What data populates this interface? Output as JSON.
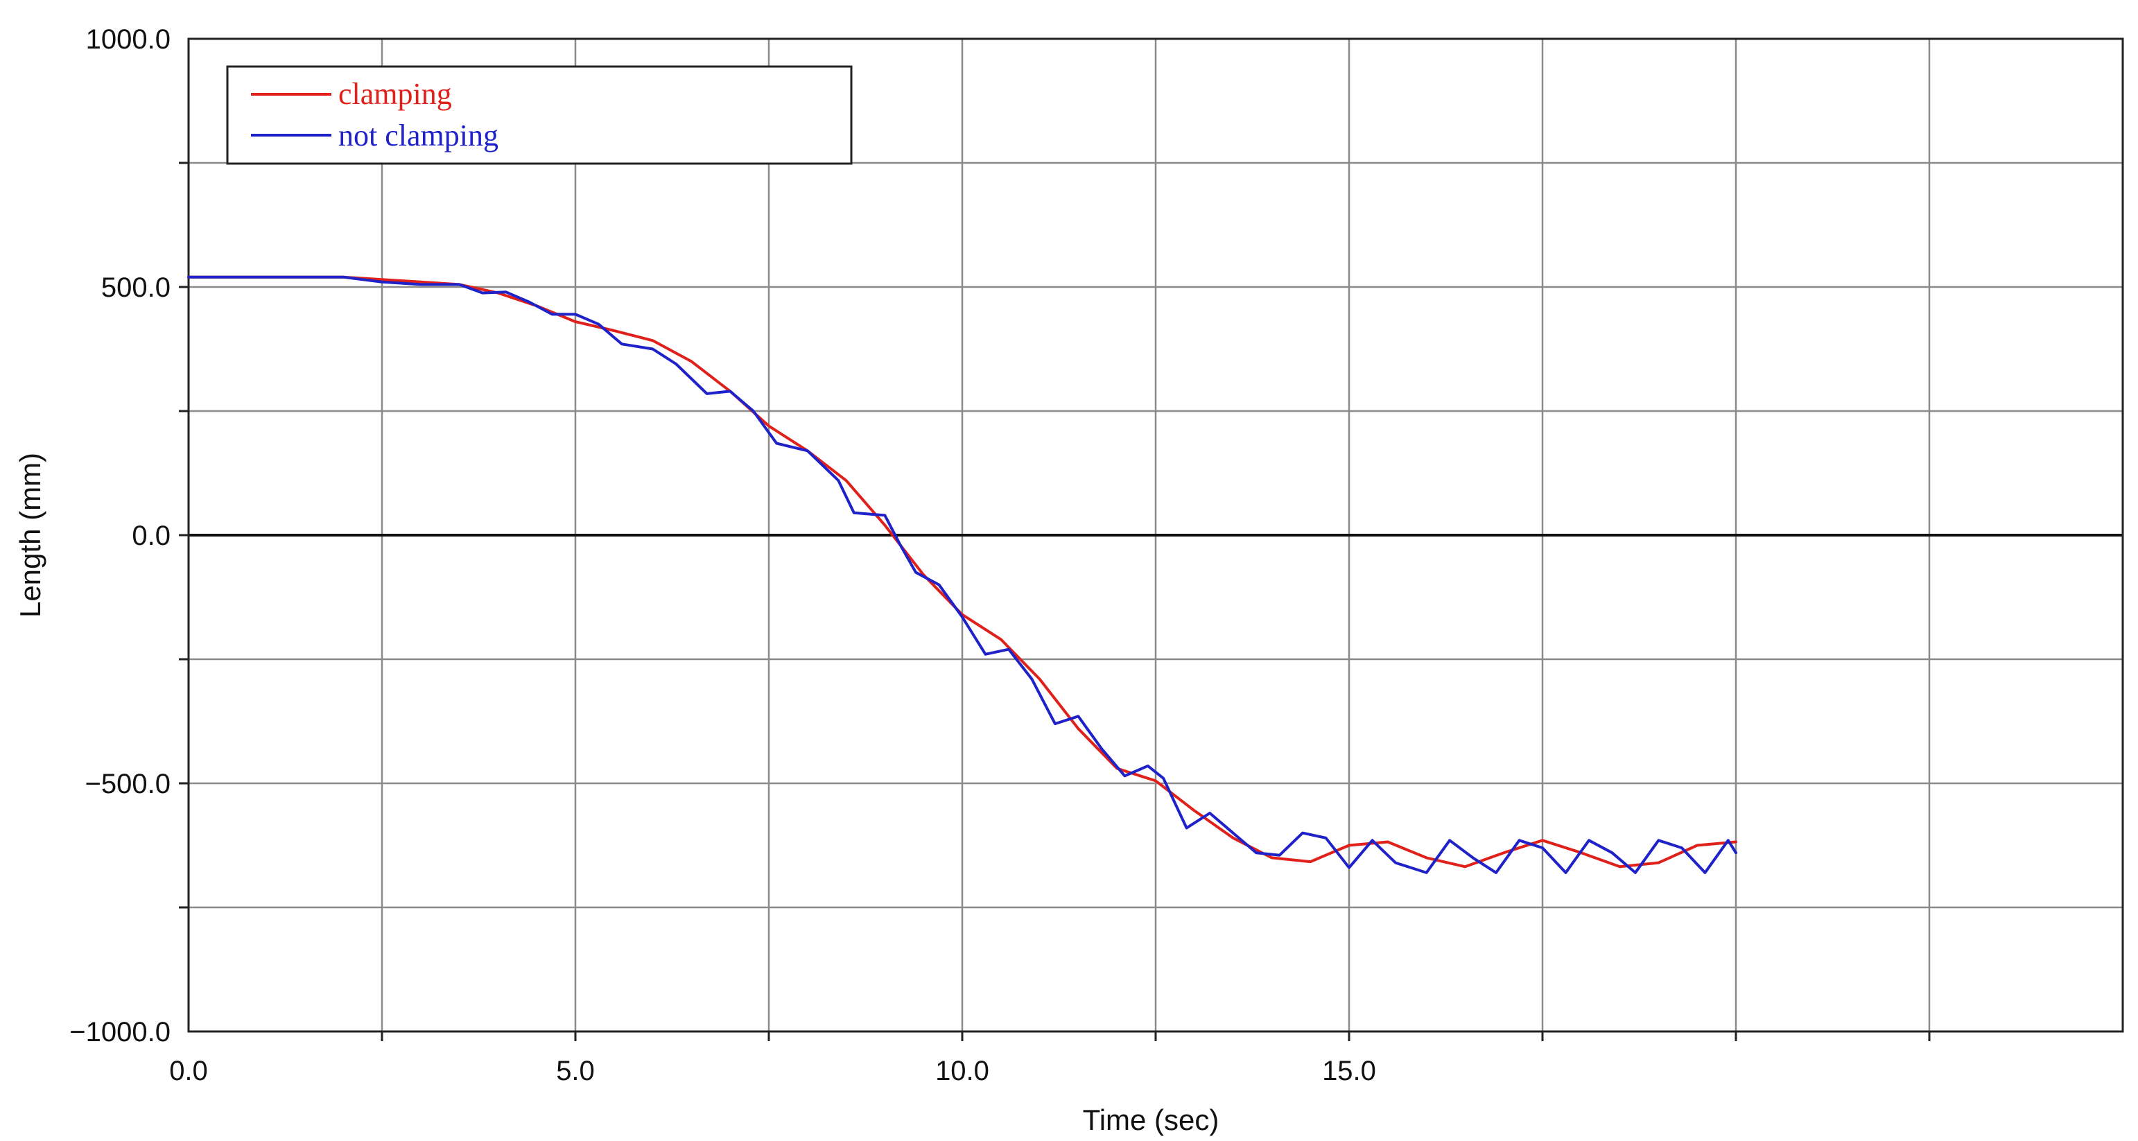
{
  "chart_data": {
    "type": "line",
    "title": "",
    "xlabel": "Time (sec)",
    "ylabel": "Length (mm)",
    "xlim": [
      0,
      25
    ],
    "ylim": [
      -1000,
      1000
    ],
    "x_ticks": [
      0,
      5,
      10,
      15
    ],
    "x_tick_labels": [
      "0.0",
      "5.0",
      "10.0",
      "15.0"
    ],
    "y_ticks": [
      1000,
      500,
      0,
      -500,
      -1000
    ],
    "y_tick_labels": [
      "1000.0",
      "500.0",
      "0.0",
      "−500.0",
      "−1000.0"
    ],
    "grid": true,
    "x_grid_step": 2.5,
    "y_grid_step": 250,
    "legend_position": "top-left",
    "series": [
      {
        "name": "clamping",
        "color": "#e0201b",
        "points": [
          [
            0,
            520
          ],
          [
            2.0,
            520
          ],
          [
            2.5,
            515
          ],
          [
            3.0,
            510
          ],
          [
            3.5,
            505
          ],
          [
            4.0,
            488
          ],
          [
            4.5,
            462
          ],
          [
            5.0,
            430
          ],
          [
            5.5,
            412
          ],
          [
            6.0,
            392
          ],
          [
            6.5,
            350
          ],
          [
            7.0,
            290
          ],
          [
            7.5,
            220
          ],
          [
            8.0,
            170
          ],
          [
            8.5,
            110
          ],
          [
            9.0,
            20
          ],
          [
            9.5,
            -80
          ],
          [
            10.0,
            -160
          ],
          [
            10.5,
            -210
          ],
          [
            11.0,
            -290
          ],
          [
            11.5,
            -390
          ],
          [
            12.0,
            -470
          ],
          [
            12.5,
            -495
          ],
          [
            13.0,
            -555
          ],
          [
            13.5,
            -610
          ],
          [
            14.0,
            -650
          ],
          [
            14.5,
            -658
          ],
          [
            15.0,
            -625
          ],
          [
            15.5,
            -618
          ],
          [
            16.0,
            -650
          ],
          [
            16.5,
            -668
          ],
          [
            17.0,
            -640
          ],
          [
            17.5,
            -615
          ],
          [
            18.0,
            -640
          ],
          [
            18.5,
            -668
          ],
          [
            19.0,
            -660
          ],
          [
            19.5,
            -625
          ],
          [
            20.0,
            -618
          ]
        ]
      },
      {
        "name": "not clamping",
        "color": "#1f22c8",
        "points": [
          [
            0,
            520
          ],
          [
            2.0,
            520
          ],
          [
            2.5,
            510
          ],
          [
            3.0,
            505
          ],
          [
            3.5,
            505
          ],
          [
            3.8,
            488
          ],
          [
            4.1,
            490
          ],
          [
            4.4,
            470
          ],
          [
            4.7,
            445
          ],
          [
            5.0,
            445
          ],
          [
            5.3,
            425
          ],
          [
            5.6,
            385
          ],
          [
            6.0,
            375
          ],
          [
            6.3,
            345
          ],
          [
            6.7,
            285
          ],
          [
            7.0,
            290
          ],
          [
            7.3,
            250
          ],
          [
            7.6,
            185
          ],
          [
            8.0,
            170
          ],
          [
            8.4,
            110
          ],
          [
            8.6,
            45
          ],
          [
            9.0,
            40
          ],
          [
            9.2,
            -20
          ],
          [
            9.4,
            -75
          ],
          [
            9.7,
            -100
          ],
          [
            10.0,
            -165
          ],
          [
            10.3,
            -240
          ],
          [
            10.6,
            -230
          ],
          [
            10.9,
            -290
          ],
          [
            11.2,
            -380
          ],
          [
            11.5,
            -365
          ],
          [
            11.8,
            -430
          ],
          [
            12.1,
            -485
          ],
          [
            12.4,
            -465
          ],
          [
            12.6,
            -490
          ],
          [
            12.9,
            -590
          ],
          [
            13.2,
            -560
          ],
          [
            13.5,
            -600
          ],
          [
            13.8,
            -640
          ],
          [
            14.1,
            -645
          ],
          [
            14.4,
            -600
          ],
          [
            14.7,
            -610
          ],
          [
            15.0,
            -670
          ],
          [
            15.3,
            -615
          ],
          [
            15.6,
            -660
          ],
          [
            16.0,
            -680
          ],
          [
            16.3,
            -615
          ],
          [
            16.6,
            -650
          ],
          [
            16.9,
            -680
          ],
          [
            17.2,
            -615
          ],
          [
            17.5,
            -630
          ],
          [
            17.8,
            -680
          ],
          [
            18.1,
            -615
          ],
          [
            18.4,
            -640
          ],
          [
            18.7,
            -680
          ],
          [
            19.0,
            -615
          ],
          [
            19.3,
            -630
          ],
          [
            19.6,
            -680
          ],
          [
            19.9,
            -615
          ],
          [
            20.0,
            -640
          ]
        ]
      }
    ]
  }
}
